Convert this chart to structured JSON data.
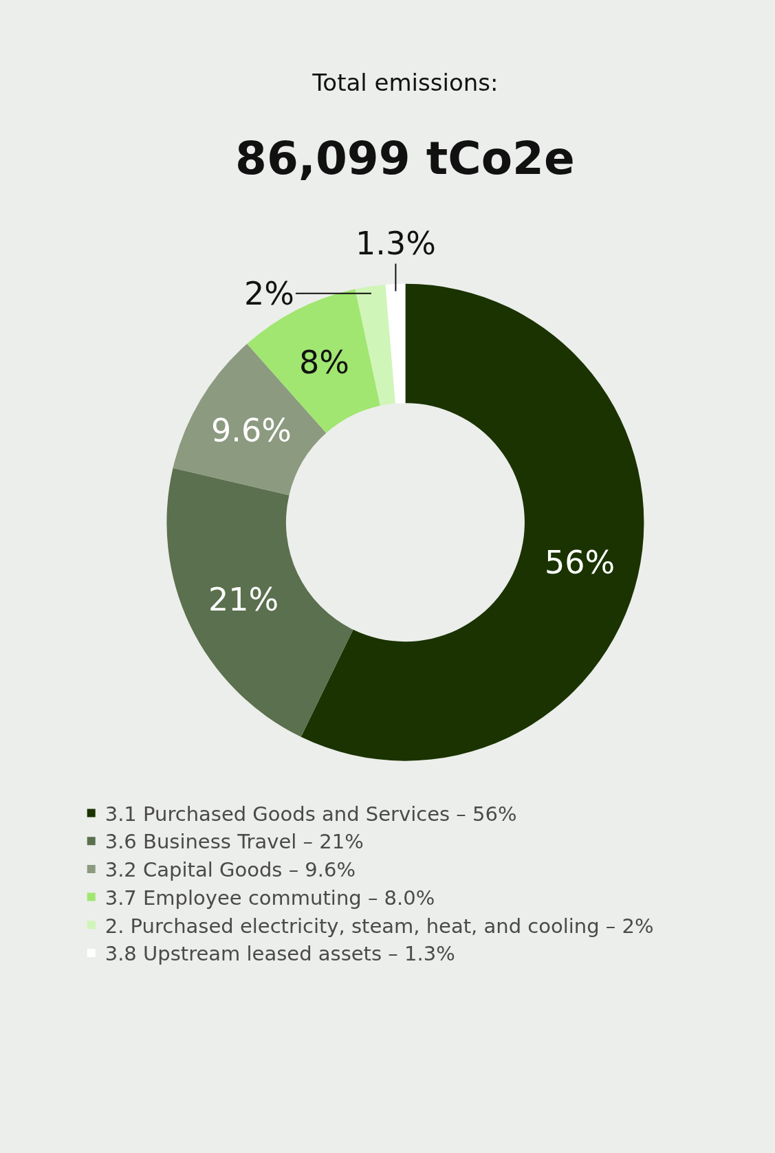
{
  "chart_data": {
    "type": "donut",
    "title": "Total emissions:",
    "subtitle": "86,099 tCo2e",
    "categories": [
      "3.1 Purchased Goods and Services – 56%",
      "3.6 Business Travel – 21%",
      "3.2 Capital Goods – 9.6%",
      "3.7 Employee commuting – 8.0%",
      "2. Purchased electricity, steam, heat, and cooling – 2%",
      "3.8 Upstream leased assets – 1.3%"
    ],
    "values": [
      56,
      21,
      9.6,
      8,
      2,
      1.3
    ],
    "value_labels": [
      "56%",
      "21%",
      "9.6%",
      "8%",
      "2%",
      "1.3%"
    ],
    "colors": [
      "#1a3300",
      "#5b704e",
      "#8c9a80",
      "#a0e670",
      "#d0f5b8",
      "#ffffff"
    ],
    "legend": "bottom"
  }
}
